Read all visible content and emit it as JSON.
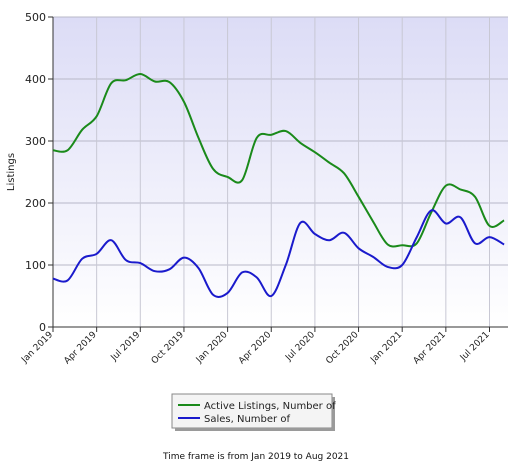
{
  "chart_data": {
    "type": "line",
    "title": "",
    "ylabel": "Listings",
    "xlabel": "",
    "ylim": [
      0,
      500
    ],
    "yticks": [
      "0",
      "100",
      "200",
      "300",
      "400",
      "500"
    ],
    "x_tick_labels": [
      "Jan 2019",
      "Apr 2019",
      "Jul 2019",
      "Oct 2019",
      "Jan 2020",
      "Apr 2020",
      "Jul 2020",
      "Oct 2020",
      "Jan 2021",
      "Apr 2021",
      "Jul 2021"
    ],
    "x": [
      "Jan 2019",
      "Feb 2019",
      "Mar 2019",
      "Apr 2019",
      "May 2019",
      "Jun 2019",
      "Jul 2019",
      "Aug 2019",
      "Sep 2019",
      "Oct 2019",
      "Nov 2019",
      "Dec 2019",
      "Jan 2020",
      "Feb 2020",
      "Mar 2020",
      "Apr 2020",
      "May 2020",
      "Jun 2020",
      "Jul 2020",
      "Aug 2020",
      "Sep 2020",
      "Oct 2020",
      "Nov 2020",
      "Dec 2020",
      "Jan 2021",
      "Feb 2021",
      "Mar 2021",
      "Apr 2021",
      "May 2021",
      "Jun 2021",
      "Jul 2021",
      "Aug 2021"
    ],
    "series": [
      {
        "name": "Active Listings, Number of",
        "color": "#1a8a1a",
        "values": [
          285,
          285,
          318,
          340,
          393,
          398,
          408,
          396,
          395,
          363,
          305,
          255,
          242,
          237,
          305,
          310,
          316,
          297,
          282,
          265,
          248,
          210,
          170,
          133,
          132,
          135,
          185,
          228,
          222,
          210,
          163,
          172
        ]
      },
      {
        "name": "Sales, Number of",
        "color": "#1a1acc",
        "values": [
          78,
          75,
          110,
          118,
          140,
          108,
          103,
          90,
          93,
          112,
          95,
          52,
          55,
          88,
          80,
          50,
          100,
          168,
          150,
          140,
          152,
          127,
          113,
          97,
          100,
          145,
          188,
          167,
          177,
          135,
          145,
          133
        ]
      }
    ],
    "grid": true,
    "legend_position": "bottom-center"
  },
  "footnote": "Time frame is from Jan 2019 to Aug 2021"
}
